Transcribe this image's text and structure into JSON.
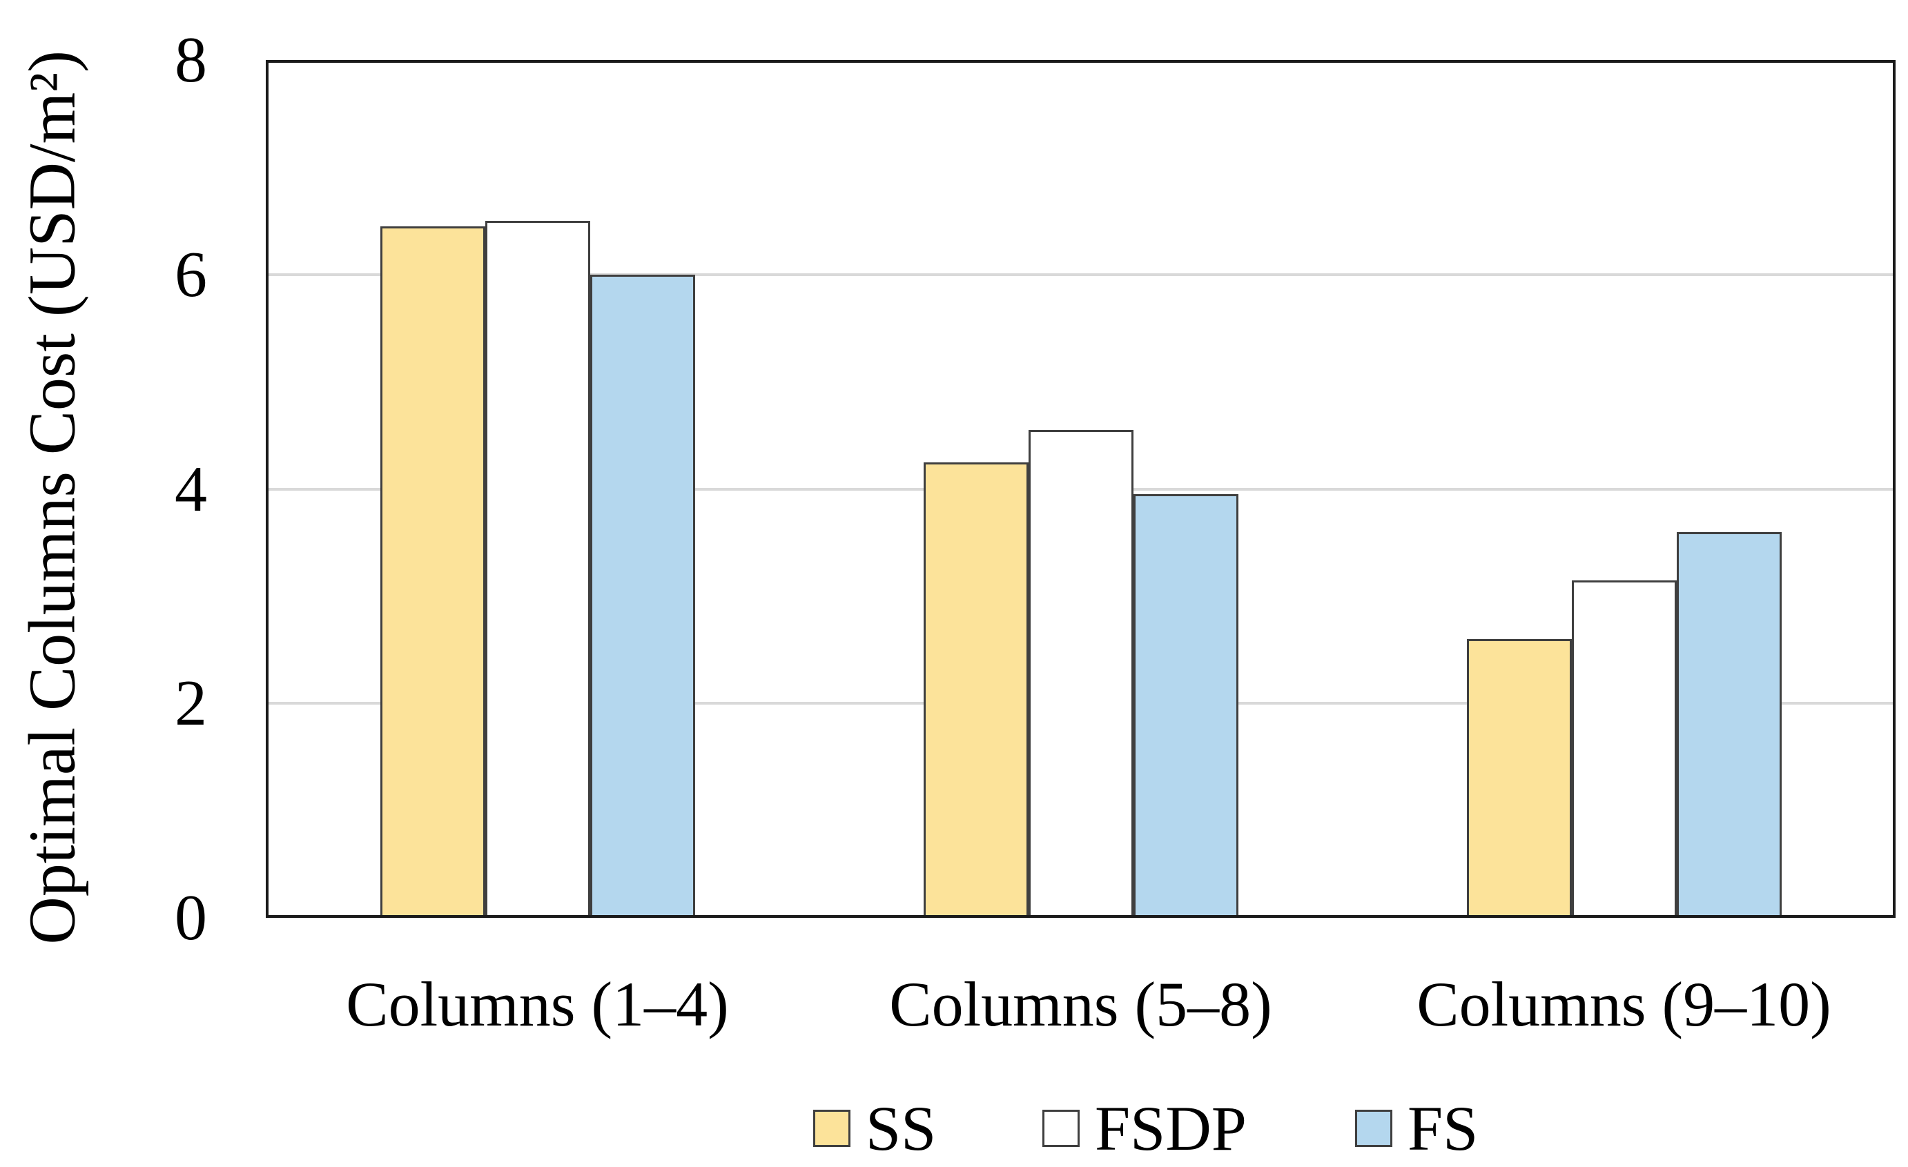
{
  "figure": {
    "background": "#FFFFFF",
    "text_color": "#000000"
  },
  "chart_data": {
    "type": "bar",
    "title": "",
    "ylabel": "Optimal Columns Cost (USD/m²)",
    "xlabel": "",
    "categories": [
      "Columns (1–4)",
      "Columns (5–8)",
      "Columns (9–10)"
    ],
    "series": [
      {
        "name": "SS",
        "color": "#FCE39A",
        "border_color": "#3F3F3F",
        "values": [
          6.45,
          4.25,
          2.6
        ]
      },
      {
        "name": "FSDP",
        "color": "#FFFFFF",
        "border_color": "#3F3F3F",
        "values": [
          6.5,
          4.55,
          3.15
        ]
      },
      {
        "name": "FS",
        "color": "#B4D7EE",
        "border_color": "#3F3F3F",
        "values": [
          6.0,
          3.95,
          3.6
        ]
      }
    ],
    "ylim": [
      0,
      8
    ],
    "yticks": [
      0,
      2,
      4,
      6,
      8
    ],
    "grid": "horizontal",
    "gridline_color": "#D9D9D9",
    "axis_color": "#1A1A1A",
    "legend_position": "bottom",
    "legend": [
      "SS",
      "FSDP",
      "FS"
    ]
  }
}
